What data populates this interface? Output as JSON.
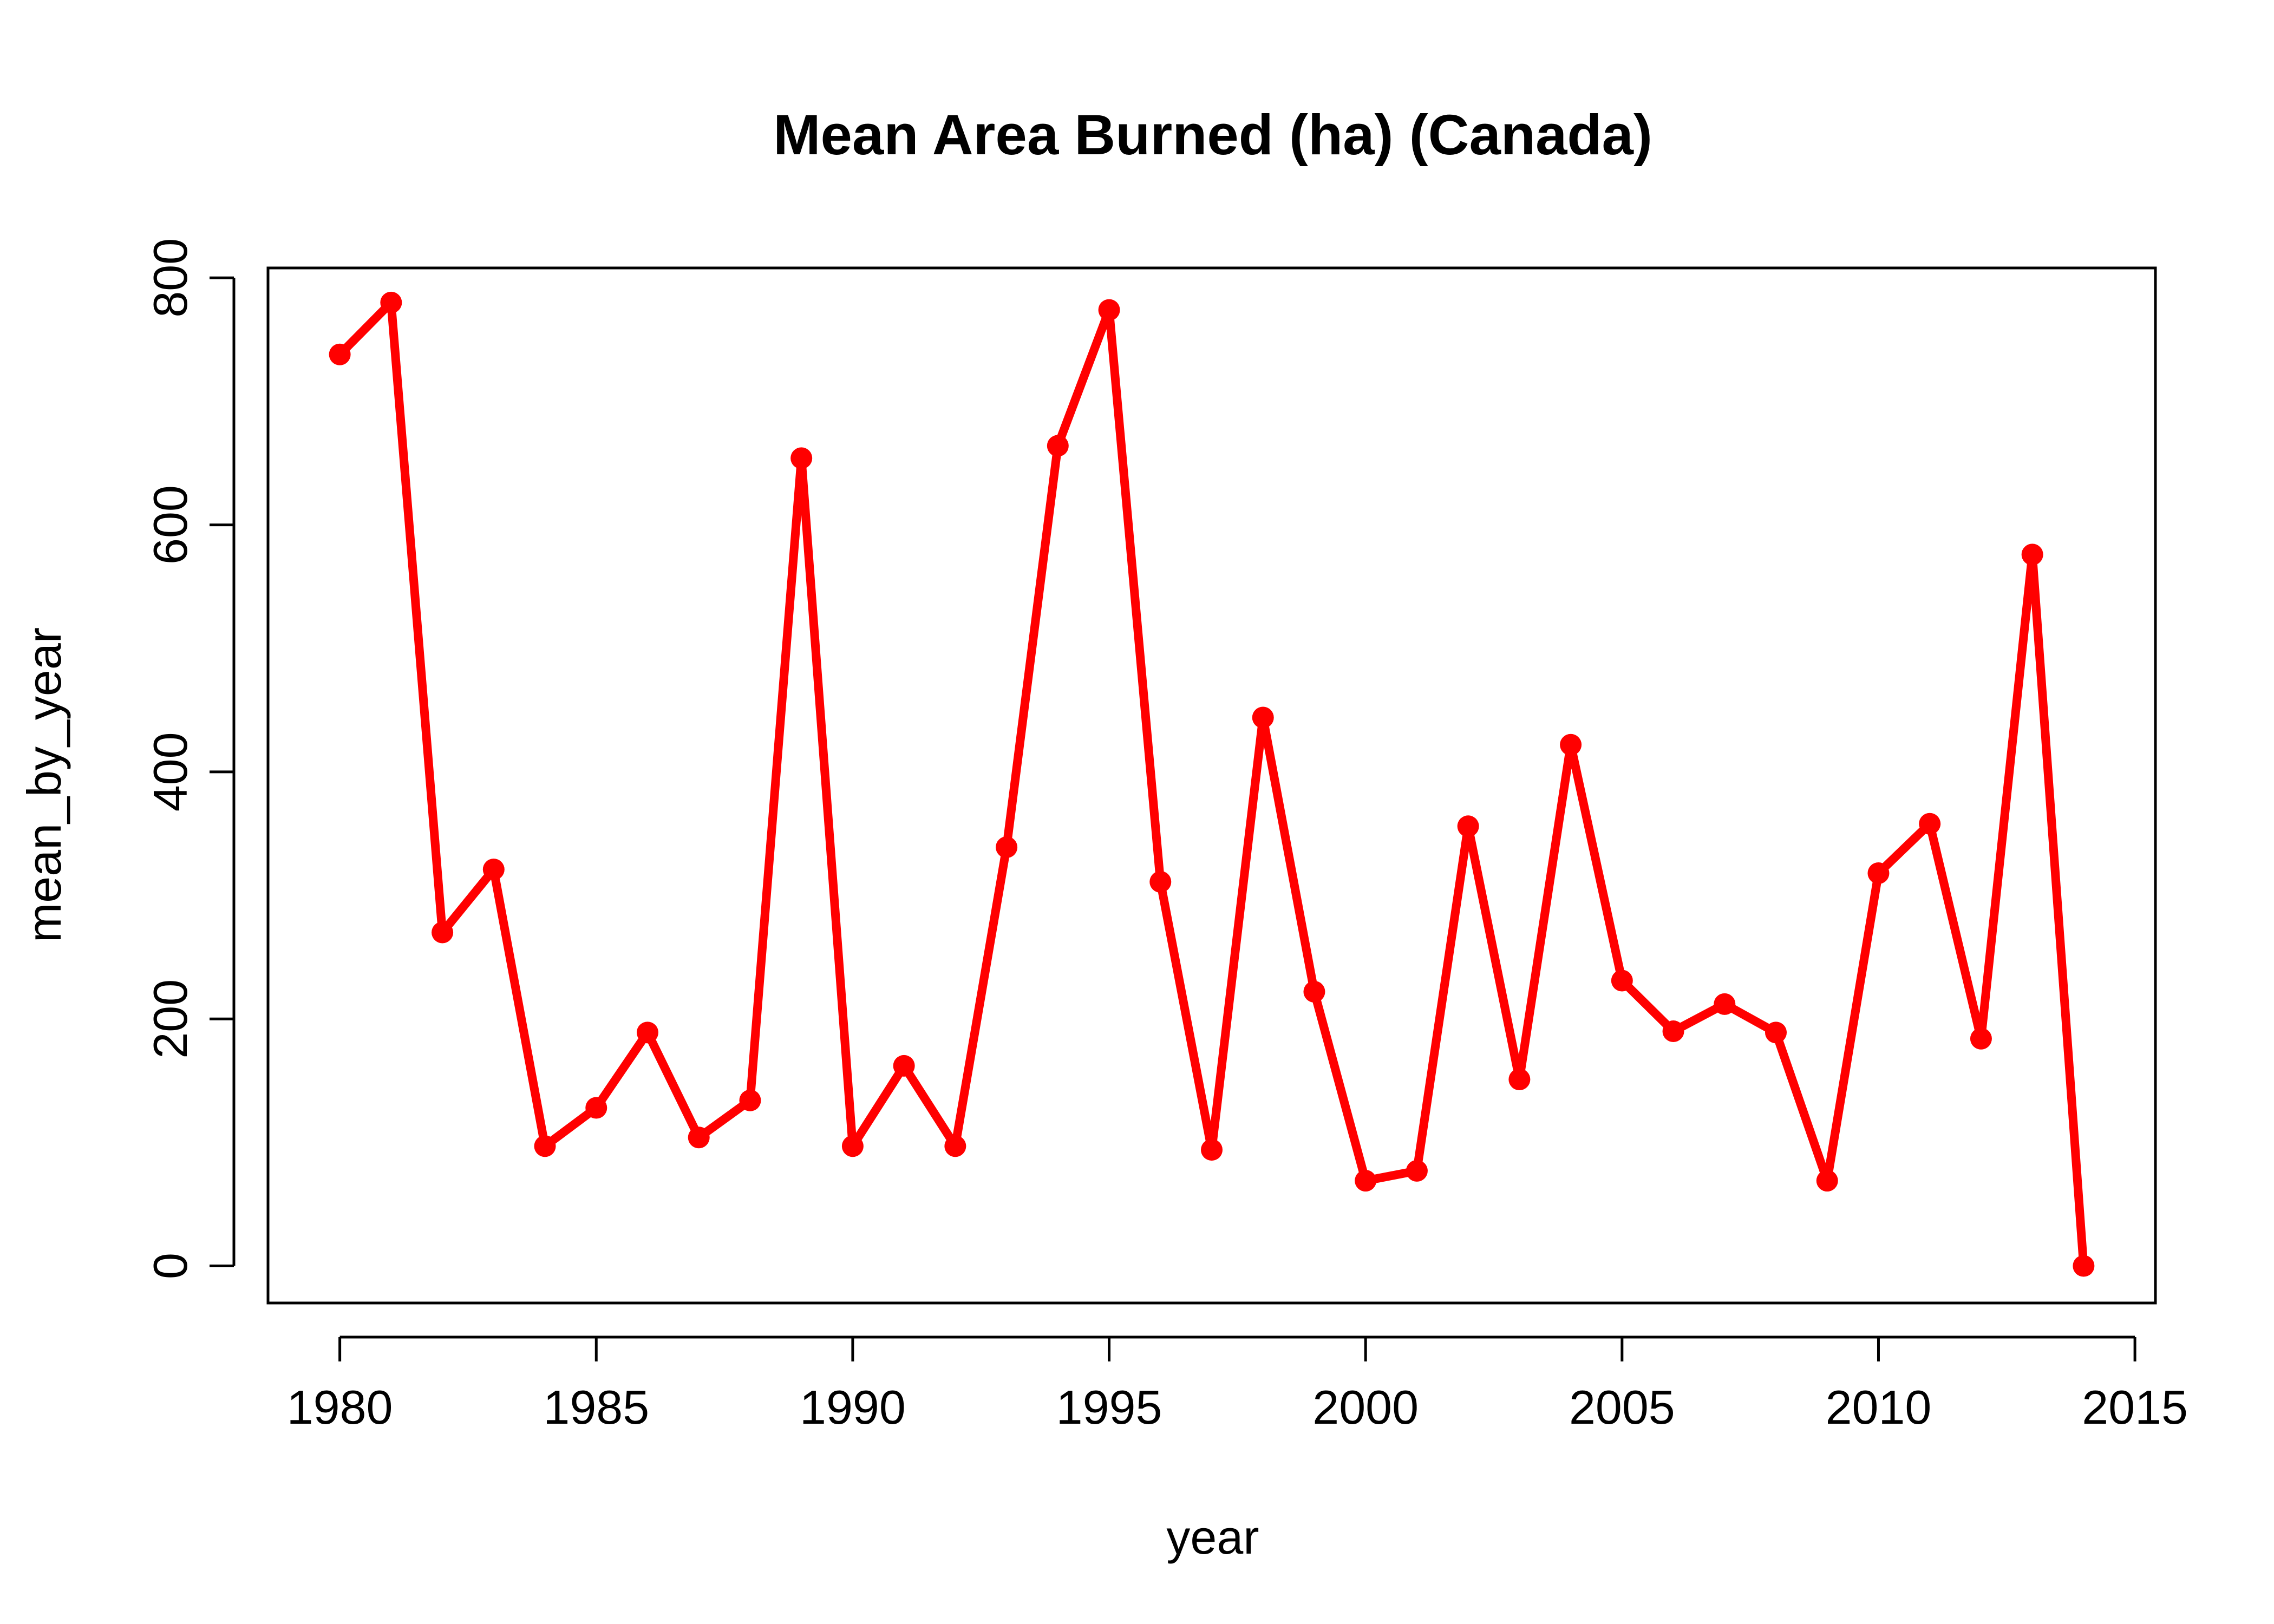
{
  "chart_data": {
    "type": "line",
    "title": "Mean Area Burned (ha) (Canada)",
    "xlabel": "year",
    "ylabel": "mean_by_year",
    "xlim": [
      1978.6,
      2015.4
    ],
    "ylim": [
      -30,
      808
    ],
    "xticks": [
      1980,
      1985,
      1990,
      1995,
      2000,
      2005,
      2010,
      2015
    ],
    "yticks": [
      0,
      200,
      400,
      600,
      800
    ],
    "grid": false,
    "legend": "none",
    "color": "#ff0000",
    "marker": "filled-circle",
    "series": [
      {
        "x": [
          1980,
          1981,
          1982,
          1983,
          1984,
          1985,
          1986,
          1987,
          1988,
          1989,
          1990,
          1991,
          1992,
          1993,
          1994,
          1995,
          1996,
          1997,
          1998,
          1999,
          2000,
          2001,
          2002,
          2003,
          2004,
          2005,
          2006,
          2007,
          2008,
          2009,
          2010,
          2011,
          2012,
          2013,
          2014
        ],
        "values": [
          738,
          780,
          270,
          321,
          97,
          128,
          189,
          104,
          134,
          654,
          97,
          162,
          97,
          339,
          664,
          774,
          311,
          94,
          444,
          222,
          69,
          77,
          356,
          151,
          422,
          231,
          190,
          212,
          189,
          69,
          318,
          358,
          184,
          576,
          0
        ]
      }
    ]
  }
}
